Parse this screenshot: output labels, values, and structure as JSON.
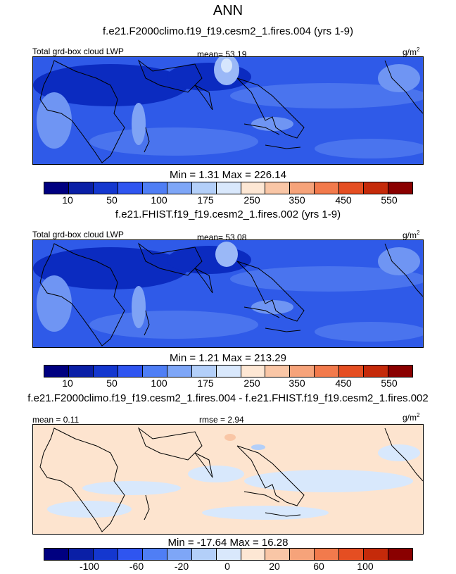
{
  "page_title": "ANN",
  "panels": [
    {
      "title": "f.e21.F2000climo.f19_f19.cesm2_1.fires.004 (yrs 1-9)",
      "left_label": "Total grd-box cloud LWP",
      "center_label": "mean=  53.19",
      "units_base": "g/m",
      "units_exp": "2",
      "minmax": "Min =   1.31 Max = 226.14",
      "colorbar_ticks": [
        "10",
        "50",
        "100",
        "175",
        "250",
        "350",
        "450",
        "550"
      ]
    },
    {
      "title": "f.e21.FHIST.f19_f19.cesm2_1.fires.002 (yrs 1-9)",
      "left_label": "Total grd-box cloud LWP",
      "center_label": "mean=  53.08",
      "units_base": "g/m",
      "units_exp": "2",
      "minmax": "Min =   1.21 Max = 213.29",
      "colorbar_ticks": [
        "10",
        "50",
        "100",
        "175",
        "250",
        "350",
        "450",
        "550"
      ]
    },
    {
      "title": "f.e21.F2000climo.f19_f19.cesm2_1.fires.004 - f.e21.FHIST.f19_f19.cesm2_1.fires.002",
      "left_label": "mean =   0.11",
      "center_label": "rmse =   2.94",
      "units_base": "g/m",
      "units_exp": "2",
      "minmax": "Min = -17.64 Max =  16.28",
      "colorbar_ticks": [
        "-100",
        "-60",
        "-20",
        "0",
        "20",
        "60",
        "100"
      ]
    }
  ],
  "colorbar_colors": [
    "#000080",
    "#0a1fa6",
    "#1437cf",
    "#2f55f0",
    "#4f7ef5",
    "#7ea6f7",
    "#b3cff9",
    "#d9e8fc",
    "#fde7d4",
    "#f9c6a6",
    "#f6a37a",
    "#f27a4c",
    "#e54e22",
    "#c52a0a",
    "#8a0000"
  ],
  "map_colors": {
    "field_low": "#0b2bc0",
    "field_mid": "#2f5ae8",
    "field_high": "#7fa3f5",
    "field_peak": "#d6e6fd",
    "diff_pos": "#fde4cf",
    "diff_neg": "#d8e8fc",
    "coastline": "#000000"
  }
}
